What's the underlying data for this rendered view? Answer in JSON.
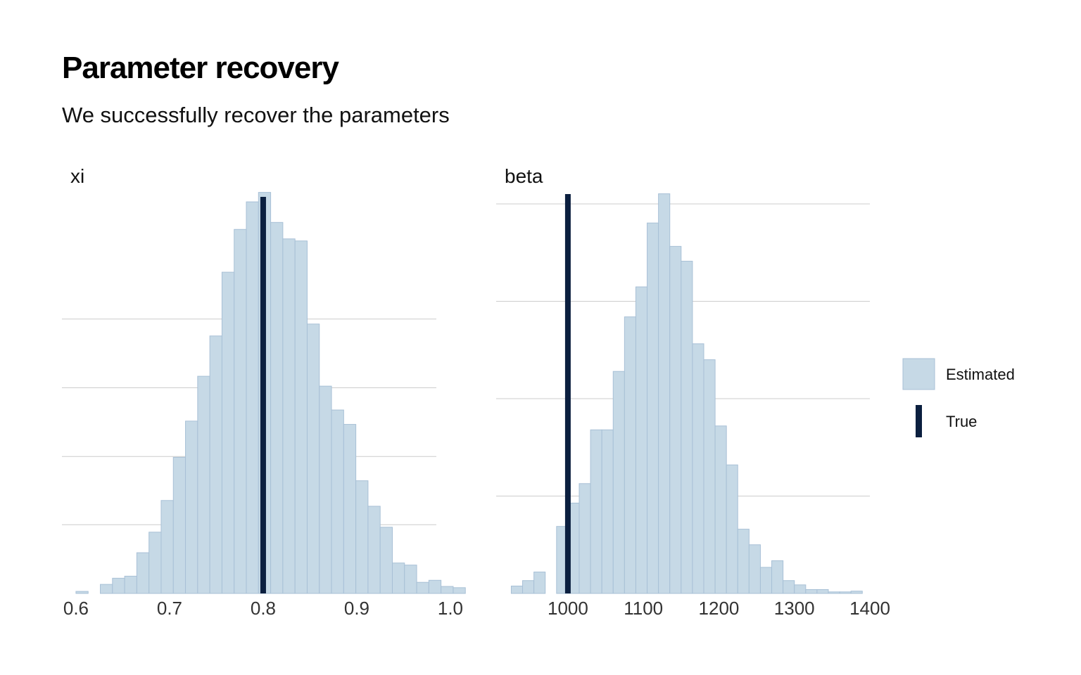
{
  "title": "Parameter recovery",
  "subtitle": "We successfully recover the parameters",
  "colors": {
    "estimated_fill": "#c6d9e6",
    "estimated_stroke": "#a8c0d6",
    "true_line": "#0b1f3f",
    "grid": "#cccccc"
  },
  "chart_data": [
    {
      "type": "histogram",
      "facet": "xi",
      "xlim": [
        0.585,
        0.985
      ],
      "ylim": [
        0,
        1
      ],
      "grid": "horizontal",
      "x_ticks": [
        "0.6",
        "0.7",
        "0.8",
        "0.9",
        "1.0"
      ],
      "x_tick_values": [
        0.6,
        0.7,
        0.8,
        0.9,
        1.0
      ],
      "bin_start": 0.6,
      "bin_width": 0.013,
      "y_gridlines": [
        0.167,
        0.333,
        0.5,
        0.667
      ],
      "counts": [
        0.005,
        0.0,
        0.022,
        0.037,
        0.042,
        0.099,
        0.149,
        0.226,
        0.331,
        0.419,
        0.528,
        0.626,
        0.781,
        0.885,
        0.952,
        0.975,
        0.902,
        0.862,
        0.857,
        0.655,
        0.504,
        0.446,
        0.411,
        0.274,
        0.212,
        0.161,
        0.074,
        0.069,
        0.027,
        0.032,
        0.017,
        0.014
      ],
      "true_value": 0.8,
      "series": [
        {
          "name": "Estimated"
        },
        {
          "name": "True"
        }
      ]
    },
    {
      "type": "histogram",
      "facet": "beta",
      "xlim": [
        905,
        1400
      ],
      "ylim": [
        0,
        1
      ],
      "grid": "horizontal",
      "x_ticks": [
        "1000",
        "1100",
        "1200",
        "1300",
        "1400"
      ],
      "x_tick_values": [
        1000,
        1100,
        1200,
        1300,
        1400
      ],
      "bin_start": 925,
      "bin_width": 15,
      "y_gridlines": [
        0.25,
        0.5,
        0.75,
        1.0
      ],
      "counts": [
        0.019,
        0.033,
        0.055,
        0.0,
        0.172,
        0.232,
        0.282,
        0.42,
        0.42,
        0.57,
        0.71,
        0.787,
        0.951,
        1.026,
        0.891,
        0.853,
        0.641,
        0.6,
        0.43,
        0.33,
        0.165,
        0.125,
        0.067,
        0.084,
        0.033,
        0.022,
        0.01,
        0.01,
        0.004,
        0.004,
        0.006
      ],
      "true_value": 1000,
      "series": [
        {
          "name": "Estimated"
        },
        {
          "name": "True"
        }
      ]
    }
  ],
  "legend": {
    "items": [
      {
        "label": "Estimated",
        "kind": "fill"
      },
      {
        "label": "True",
        "kind": "line"
      }
    ]
  }
}
